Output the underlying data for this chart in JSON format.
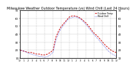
{
  "title": "Milwaukee Weather Outdoor Temperature (vs) Wind Chill (Last 24 Hours)",
  "title_fontsize": 3.5,
  "bg_color": "#ffffff",
  "plot_bg": "#ffffff",
  "grid_color": "#bbbbbb",
  "ylim": [
    10,
    70
  ],
  "y_ticks": [
    10,
    20,
    30,
    40,
    50,
    60,
    70
  ],
  "y_tick_labels": [
    "10",
    "20",
    "30",
    "40",
    "50",
    "60",
    "70"
  ],
  "temp_color": "#cc0000",
  "wind_chill_color": "#0000cc",
  "temp_data": [
    20,
    19,
    18,
    17,
    17,
    16,
    15,
    15,
    14,
    14,
    15,
    17,
    20,
    36,
    44,
    50,
    54,
    58,
    62,
    63,
    63,
    62,
    60,
    57,
    54,
    50,
    45,
    41,
    38,
    34,
    30,
    26,
    23,
    20,
    18,
    17
  ],
  "wind_chill_data": [
    20,
    19,
    18,
    16,
    15,
    14,
    13,
    12,
    12,
    11,
    12,
    14,
    17,
    32,
    41,
    48,
    52,
    57,
    60,
    61,
    62,
    61,
    59,
    56,
    52,
    48,
    43,
    39,
    35,
    31,
    27,
    23,
    19,
    16,
    14,
    12
  ],
  "vgrid_x": [
    0,
    3,
    6,
    9,
    12,
    15,
    18,
    21,
    24,
    27,
    30,
    33
  ],
  "n_points": 36,
  "x_max": 35,
  "x_tick_labels": [
    "12",
    "1",
    "2",
    "3",
    "4",
    "5",
    "6",
    "7",
    "8",
    "9",
    "10",
    "11",
    "12",
    "1",
    "2",
    "3",
    "4",
    "5",
    "6",
    "7",
    "8",
    "9",
    "10",
    "11",
    "12"
  ],
  "legend_temp_label": "Outdoor Temp",
  "legend_wc_label": "Wind Chill"
}
